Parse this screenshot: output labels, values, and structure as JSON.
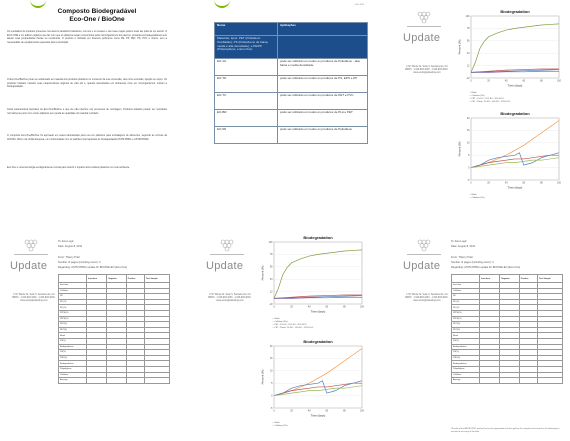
{
  "page1": {
    "title_line1": "Composto Biodegradável",
    "title_line2": "Eco-One / BioOne",
    "paragraphs": [
      "Os resultados de produtos presentes nos aterros sanitários brasileiros, nos rios e no oceano e nas ruas e lagos podem levar até mais de um século. O ECO-ONE é um aditivo orgânico que faz com que os plásticos sejam consumidos pelos microrganismos dos aterros, tornando-os biodegradáveis sem alterar suas propriedades físicas ou mecânicas. O produto é utilizado em diversos polímeros como PE, PP, PET, PS, PVC e outros, sem a necessidade de equipamentos especiais para a produção.",
      "O Eco-One/BioOne pode ser adicionado ao material dos produtos plásticos no momento da sua conversão, tais como extrusão, injeção ou sopro. Os produtos tratados mantêm suas características originais de vida útil e, quando descartados em ambientes ricos em microrganismos, iniciam a biodegradação.",
      "Outra característica favorável do Eco-One/BioOne é que ele não interfere nos processos de reciclagem. Produtos tratados podem ser reciclados normalmente junto com outros plásticos sem perda de qualidade do material reciclado.",
      "O composto Eco-One/BioOne foi aprovado em testes laboratoriais para uso em plásticos para embalagens de alimentos, segundo as normas da ANVISA, FDA e da União Europeia, em conformidade com os padrões internacionais de biodegradação ASTM D5511 e ASTM D5526.",
      "Eco-One é uma tecnologia ecologicamente correta para reduzir o impacto dos resíduos plásticos no meio ambiente."
    ]
  },
  "page2": {
    "header_tiny": "eco-one",
    "table_head": [
      "Nome",
      "Aplicações"
    ],
    "table_sub": "Materiais, tipos: PET (Polietileno Tereftalato), PS (Poliestireno de baixa, media e alta densidade), e PE/PP (Polipropileno, e Eco-One)",
    "rows": [
      [
        "EO-1G",
        "pode ser utilizado em todos os produtos de Polietileno - alta, baixa e media densidade"
      ],
      [
        "EO-TD",
        "pode ser utilizado em todos os produtos de PS, EPS e PP"
      ],
      [
        "EO-TC",
        "pode ser utilizado em todos os produtos de PET e PVC"
      ],
      [
        "EO-BR",
        "pode ser utilizado em todos os produtos de PLA e PET"
      ],
      [
        "EO-5D",
        "pode ser utilizado em todos os produtos de Polietileno"
      ]
    ]
  },
  "update": {
    "word": "Update",
    "address": "1717 Monte St. Suite 5, Sacramento, CA 95815 · 1.916.993.1000 · 1.916.993.4000 · www.ecologicaltesting.com",
    "to": "To: Eco-Logic",
    "date": "Date: August 8, 2011",
    "from": "From: Thierry Pratt",
    "number": "Number of pages (including cover): 3",
    "regarding": "Regarding: ASTM D5511 update for BIOONE-EO (Eco-One)",
    "chart_title": "Biodegradation",
    "xlabel": "Time (days)",
    "ylabel": "Percent (%)",
    "legend": [
      "— Blank",
      "— Cellulose (Ptv)",
      "— PET - 1% EO - 10% EO - 20% EO-5",
      "— PET - Plastic 1% EO - 10% EO - 20% EO-5"
    ],
    "table_cols": [
      "",
      "Inoculum",
      "Negative",
      "Positive",
      "Test Sample"
    ],
    "table_rows": [
      "Inoculum",
      "Cellulose",
      "PE",
      "PE (%)",
      "PE (%)",
      "PPPE(%)",
      "PPPE(%)",
      "PET(%)",
      "PET(%)",
      "Blank",
      "PS(%)",
      "Biodegradation",
      "PS(%)",
      "PSD(%)",
      "Biodegradation",
      "Polyethylene",
      "Cellulose",
      "Average"
    ],
    "footnote": "*Results of the ASTM D5511 method are for the organization that first gathers the samples to be tested in this laboratory to ensure the accuracy of the data."
  },
  "chart_data": [
    {
      "type": "line",
      "title": "Biodegradation",
      "xlabel": "Time (days)",
      "ylabel": "Percent (%)",
      "xlim": [
        0,
        100
      ],
      "ylim": [
        -10,
        100
      ],
      "grid": true,
      "legend": "bottom",
      "series": [
        {
          "name": "Cellulose (Ptv)",
          "color": "#7f9f3f",
          "x": [
            0,
            5,
            10,
            15,
            20,
            30,
            40,
            50,
            60,
            70,
            80,
            90,
            100
          ],
          "y": [
            0,
            18,
            42,
            55,
            63,
            70,
            75,
            78,
            80,
            82,
            84,
            85,
            86
          ]
        },
        {
          "name": "Blank",
          "color": "#c0504d",
          "x": [
            0,
            20,
            40,
            60,
            80,
            100
          ],
          "y": [
            0,
            2,
            4,
            5,
            6,
            6
          ]
        },
        {
          "name": "PET",
          "color": "#4f81bd",
          "x": [
            0,
            20,
            40,
            60,
            80,
            100
          ],
          "y": [
            0,
            1,
            2,
            3,
            4,
            5
          ]
        },
        {
          "name": "PET-Plastic",
          "color": "#8064a2",
          "x": [
            0,
            20,
            40,
            60,
            80,
            100
          ],
          "y": [
            0,
            0,
            1,
            1,
            2,
            2
          ]
        }
      ]
    },
    {
      "type": "line",
      "title": "Biodegradation",
      "xlabel": "Time (days)",
      "ylabel": "Percent (%)",
      "xlim": [
        0,
        100
      ],
      "ylim": [
        -5,
        20
      ],
      "grid": true,
      "legend": "bottom",
      "series": [
        {
          "name": "Cellulose (Ptv)",
          "color": "#f79646",
          "x": [
            0,
            20,
            40,
            60,
            80,
            100
          ],
          "y": [
            0,
            2,
            5,
            9,
            14,
            19
          ]
        },
        {
          "name": "Blank",
          "color": "#c0504d",
          "x": [
            0,
            10,
            20,
            30,
            40,
            50,
            60,
            70,
            80,
            90,
            100
          ],
          "y": [
            0,
            1,
            2,
            2.5,
            3,
            3.5,
            3.5,
            4,
            4.5,
            5,
            5
          ]
        },
        {
          "name": "PET",
          "color": "#4f81bd",
          "x": [
            0,
            10,
            20,
            30,
            40,
            50,
            55,
            60,
            70,
            80,
            90,
            100
          ],
          "y": [
            0,
            1,
            3,
            4,
            4.5,
            5,
            6,
            1,
            2,
            4,
            5,
            6
          ]
        },
        {
          "name": "PET-Plastic",
          "color": "#9bbb59",
          "x": [
            0,
            10,
            20,
            30,
            40,
            50,
            60,
            70,
            80,
            90,
            100
          ],
          "y": [
            0,
            0.5,
            1,
            1.5,
            2,
            2,
            2.5,
            3,
            3,
            3.5,
            4
          ]
        }
      ]
    }
  ]
}
